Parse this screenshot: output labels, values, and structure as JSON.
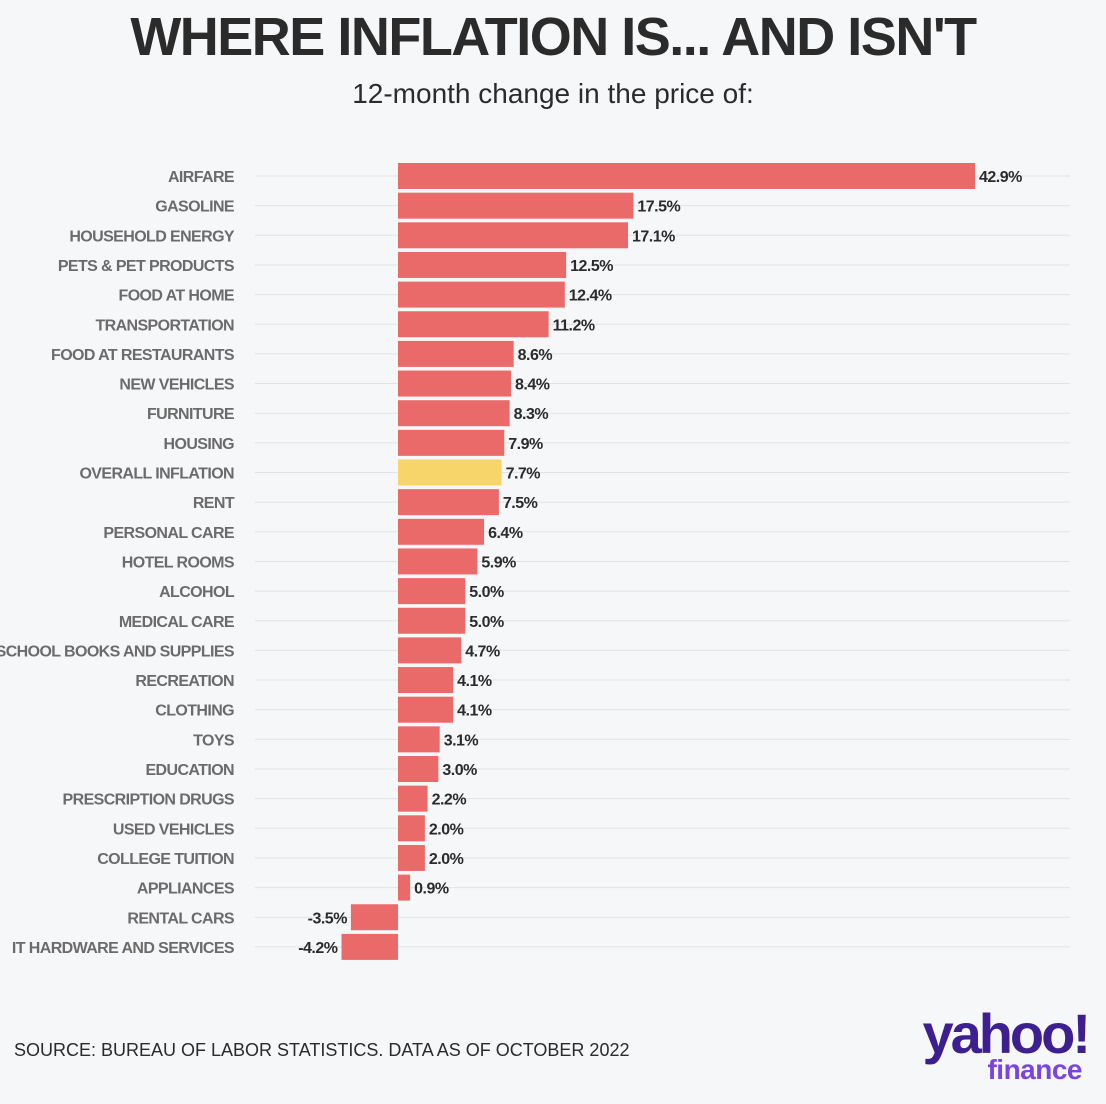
{
  "title": "WHERE INFLATION IS... AND ISN'T",
  "subtitle": "12-month change in the price of:",
  "source": "SOURCE: BUREAU OF LABOR STATISTICS. DATA AS OF OCTOBER 2022",
  "logo": {
    "wordmark": "yahoo!",
    "sub": "finance"
  },
  "colors": {
    "bar": "#ea6a69",
    "highlight": "#f7d56a",
    "grid": "#e1e3e7",
    "title": "#2b2b2b",
    "category_label": "#6b6b6b",
    "logo_primary": "#3e1f8f",
    "logo_secondary": "#7b43e2"
  },
  "chart_data": {
    "type": "bar",
    "orientation": "horizontal",
    "title": "WHERE INFLATION IS... AND ISN'T",
    "subtitle": "12-month change in the price of:",
    "unit": "%",
    "highlight_category": "OVERALL INFLATION",
    "grid": true,
    "categories": [
      "AIRFARE",
      "GASOLINE",
      "HOUSEHOLD ENERGY",
      "PETS & PET PRODUCTS",
      "FOOD AT HOME",
      "TRANSPORTATION",
      "FOOD AT RESTAURANTS",
      "NEW VEHICLES",
      "FURNITURE",
      "HOUSING",
      "OVERALL INFLATION",
      "RENT",
      "PERSONAL CARE",
      "HOTEL ROOMS",
      "ALCOHOL",
      "MEDICAL CARE",
      "SCHOOL BOOKS AND SUPPLIES",
      "RECREATION",
      "CLOTHING",
      "TOYS",
      "EDUCATION",
      "PRESCRIPTION DRUGS",
      "USED VEHICLES",
      "COLLEGE TUITION",
      "APPLIANCES",
      "RENTAL CARS",
      "IT HARDWARE AND SERVICES"
    ],
    "values": [
      42.9,
      17.5,
      17.1,
      12.5,
      12.4,
      11.2,
      8.6,
      8.4,
      8.3,
      7.9,
      7.7,
      7.5,
      6.4,
      5.9,
      5.0,
      5.0,
      4.7,
      4.1,
      4.1,
      3.1,
      3.0,
      2.2,
      2.0,
      2.0,
      0.9,
      -3.5,
      -4.2
    ],
    "value_labels": [
      "42.9%",
      "17.5%",
      "17.1%",
      "12.5%",
      "12.4%",
      "11.2%",
      "8.6%",
      "8.4%",
      "8.3%",
      "7.9%",
      "7.7%",
      "7.5%",
      "6.4%",
      "5.9%",
      "5.0%",
      "5.0%",
      "4.7%",
      "4.1%",
      "4.1%",
      "3.1%",
      "3.0%",
      "2.2%",
      "2.0%",
      "2.0%",
      "0.9%",
      "-3.5%",
      "-4.2%"
    ]
  }
}
